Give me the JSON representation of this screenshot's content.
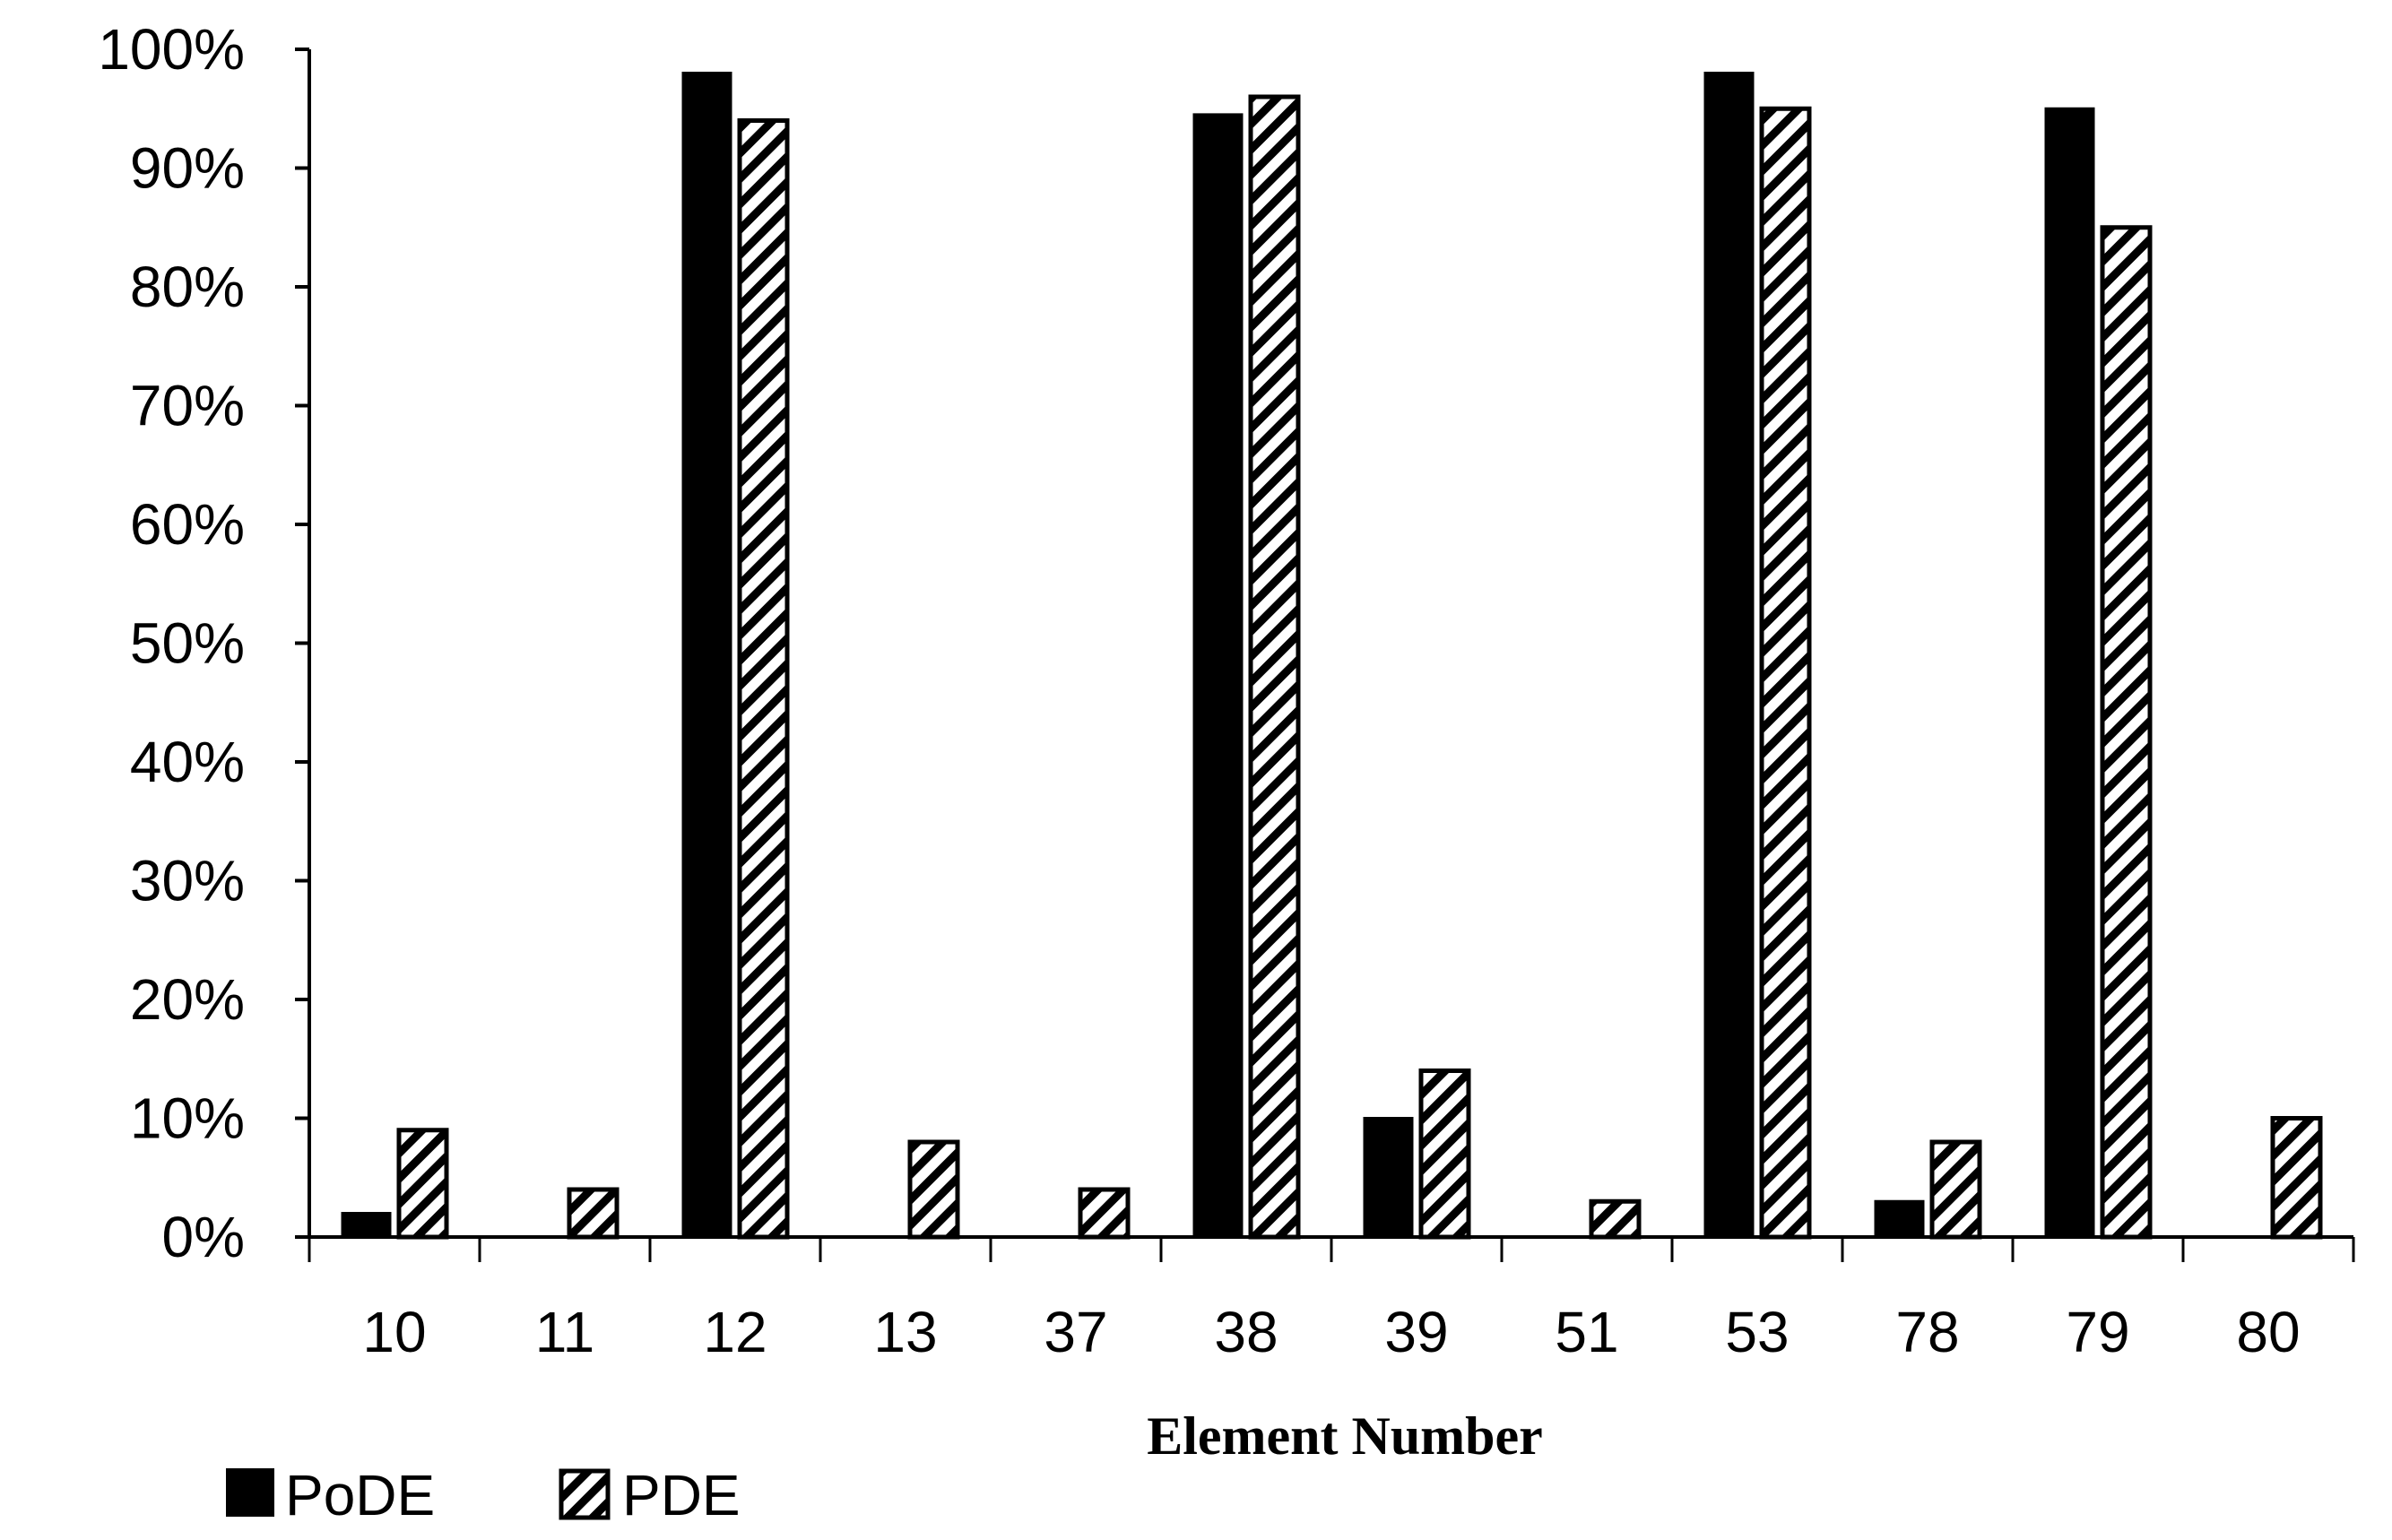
{
  "chart_data": {
    "type": "bar",
    "title": "",
    "xlabel": "Element Number",
    "ylabel": "",
    "categories": [
      "10",
      "11",
      "12",
      "13",
      "37",
      "38",
      "39",
      "51",
      "53",
      "78",
      "79",
      "80"
    ],
    "series": [
      {
        "name": "PoDE",
        "fill": "solid",
        "color": "#000000",
        "values": [
          2,
          0,
          98,
          0,
          0,
          94.5,
          10,
          0,
          98,
          3,
          95,
          0
        ]
      },
      {
        "name": "PDE",
        "fill": "diagonal-hatch",
        "color": "#000000",
        "values": [
          9,
          4,
          94,
          8,
          4,
          96,
          14,
          3,
          95,
          8,
          85,
          10
        ]
      }
    ],
    "ylim": [
      0,
      100
    ],
    "yticks": [
      "0%",
      "10%",
      "20%",
      "30%",
      "40%",
      "50%",
      "60%",
      "70%",
      "80%",
      "90%",
      "100%"
    ],
    "y_tick_values": [
      0,
      10,
      20,
      30,
      40,
      50,
      60,
      70,
      80,
      90,
      100
    ],
    "grid": false,
    "legend_position": "bottom-left"
  }
}
